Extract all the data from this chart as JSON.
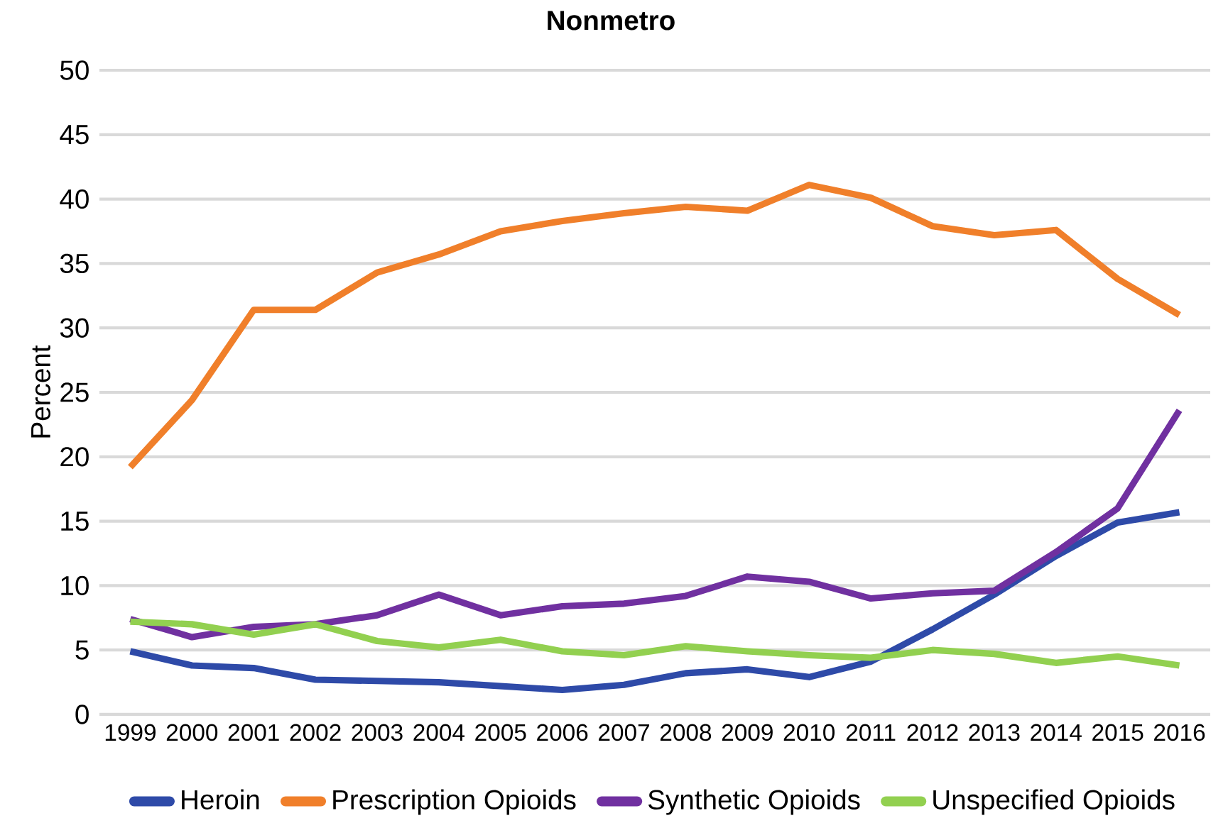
{
  "chart_data": {
    "type": "line",
    "title": "Nonmetro",
    "ylabel": "Percent",
    "categories": [
      "1999",
      "2000",
      "2001",
      "2002",
      "2003",
      "2004",
      "2005",
      "2006",
      "2007",
      "2008",
      "2009",
      "2010",
      "2011",
      "2012",
      "2013",
      "2014",
      "2015",
      "2016"
    ],
    "series": [
      {
        "name": "Heroin",
        "color": "#2e4aa8",
        "values": [
          4.9,
          3.8,
          3.6,
          2.7,
          2.6,
          2.5,
          2.2,
          1.9,
          2.3,
          3.2,
          3.5,
          2.9,
          4.1,
          6.6,
          9.3,
          12.3,
          14.9,
          15.7
        ]
      },
      {
        "name": "Prescription Opioids",
        "color": "#f07f2a",
        "values": [
          19.2,
          24.4,
          31.4,
          31.4,
          34.3,
          35.7,
          37.5,
          38.3,
          38.9,
          39.4,
          39.1,
          41.1,
          40.1,
          37.9,
          37.2,
          37.6,
          33.8,
          31.0
        ]
      },
      {
        "name": "Synthetic Opioids",
        "color": "#7030a0",
        "values": [
          7.4,
          6.0,
          6.8,
          7.0,
          7.7,
          9.3,
          7.7,
          8.4,
          8.6,
          9.2,
          10.7,
          10.3,
          9.0,
          9.4,
          9.6,
          12.6,
          16.0,
          23.6
        ]
      },
      {
        "name": "Unspecified Opioids",
        "color": "#92d050",
        "values": [
          7.2,
          7.0,
          6.2,
          7.0,
          5.7,
          5.2,
          5.8,
          4.9,
          4.6,
          5.3,
          4.9,
          4.6,
          4.4,
          5.0,
          4.7,
          4.0,
          4.5,
          3.8
        ]
      }
    ],
    "ylim": [
      0,
      50
    ],
    "yticks": [
      0,
      5,
      10,
      15,
      20,
      25,
      30,
      35,
      40,
      45,
      50
    ],
    "grid": "y",
    "legend": "bottom",
    "marker": "none",
    "line_style": "solid"
  }
}
